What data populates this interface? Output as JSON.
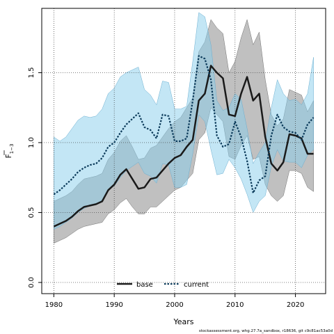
{
  "chart_data": {
    "type": "line",
    "xlabel": "Years",
    "ylabel_main": "F",
    "ylabel_sub": "1−3",
    "xlim": [
      1978,
      2025
    ],
    "ylim": [
      -0.08,
      1.96
    ],
    "xticks": [
      1980,
      1990,
      2000,
      2010,
      2020
    ],
    "yticks": [
      0.0,
      0.5,
      1.0,
      1.5
    ],
    "ytick_labels": [
      "0.0",
      "0.5",
      "1.0",
      "1.5"
    ],
    "grid": true,
    "legend_placement": "bottom-center",
    "colors": {
      "base_line": "#1a1a1a",
      "base_band": "#999999",
      "current_line": "#0b3a5a",
      "current_band": "#87ceeb"
    },
    "x": [
      1980,
      1981,
      1982,
      1983,
      1984,
      1985,
      1986,
      1987,
      1988,
      1989,
      1990,
      1991,
      1992,
      1993,
      1994,
      1995,
      1996,
      1997,
      1998,
      1999,
      2000,
      2001,
      2002,
      2003,
      2004,
      2005,
      2006,
      2007,
      2008,
      2009,
      2010,
      2011,
      2012,
      2013,
      2014,
      2015,
      2016,
      2017,
      2018,
      2019,
      2020,
      2021,
      2022,
      2023
    ],
    "series": [
      {
        "name": "base",
        "style": "solid",
        "values": [
          0.4,
          0.42,
          0.44,
          0.47,
          0.51,
          0.54,
          0.55,
          0.56,
          0.58,
          0.66,
          0.7,
          0.77,
          0.81,
          0.74,
          0.67,
          0.68,
          0.74,
          0.75,
          0.8,
          0.85,
          0.89,
          0.91,
          0.97,
          1.02,
          1.3,
          1.35,
          1.55,
          1.5,
          1.46,
          1.2,
          1.19,
          1.35,
          1.47,
          1.3,
          1.35,
          1.04,
          0.85,
          0.8,
          0.86,
          1.06,
          1.05,
          1.03,
          0.92,
          0.92
        ],
        "lower": [
          0.28,
          0.3,
          0.32,
          0.35,
          0.38,
          0.4,
          0.41,
          0.42,
          0.43,
          0.49,
          0.52,
          0.57,
          0.6,
          0.54,
          0.49,
          0.49,
          0.54,
          0.54,
          0.58,
          0.62,
          0.66,
          0.68,
          0.73,
          0.78,
          1.02,
          1.07,
          1.25,
          1.2,
          1.15,
          0.9,
          0.88,
          0.98,
          1.05,
          0.88,
          0.9,
          0.7,
          0.62,
          0.58,
          0.62,
          0.8,
          0.8,
          0.78,
          0.68,
          0.65
        ],
        "upper": [
          0.58,
          0.6,
          0.62,
          0.65,
          0.7,
          0.74,
          0.75,
          0.76,
          0.78,
          0.88,
          0.93,
          1.01,
          1.05,
          0.97,
          0.88,
          0.89,
          0.96,
          0.98,
          1.04,
          1.1,
          1.15,
          1.18,
          1.25,
          1.32,
          1.65,
          1.72,
          1.88,
          1.82,
          1.78,
          1.5,
          1.58,
          1.75,
          1.88,
          1.7,
          1.79,
          1.45,
          1.2,
          1.12,
          1.17,
          1.38,
          1.36,
          1.34,
          1.22,
          1.3
        ]
      },
      {
        "name": "current",
        "style": "dotted",
        "values": [
          0.63,
          0.66,
          0.7,
          0.74,
          0.79,
          0.82,
          0.84,
          0.85,
          0.89,
          0.97,
          1.0,
          1.07,
          1.13,
          1.17,
          1.21,
          1.11,
          1.09,
          1.03,
          1.2,
          1.19,
          1.01,
          1.01,
          1.03,
          1.3,
          1.62,
          1.6,
          1.45,
          1.05,
          0.97,
          0.99,
          1.15,
          1.04,
          0.87,
          0.64,
          0.73,
          0.76,
          1.05,
          1.2,
          1.11,
          1.08,
          1.07,
          1.02,
          1.13,
          1.18
        ],
        "lower": [
          0.38,
          0.4,
          0.43,
          0.46,
          0.5,
          0.53,
          0.55,
          0.56,
          0.59,
          0.66,
          0.69,
          0.75,
          0.8,
          0.83,
          0.86,
          0.78,
          0.76,
          0.71,
          0.85,
          0.84,
          0.68,
          0.68,
          0.7,
          0.92,
          1.2,
          1.15,
          0.95,
          0.77,
          0.78,
          0.88,
          0.82,
          0.74,
          0.63,
          0.5,
          0.58,
          0.62,
          0.83,
          0.95,
          0.87,
          0.86,
          0.86,
          0.82,
          0.91,
          0.95
        ],
        "upper": [
          1.04,
          1.01,
          1.04,
          1.1,
          1.16,
          1.19,
          1.18,
          1.19,
          1.24,
          1.35,
          1.39,
          1.47,
          1.5,
          1.52,
          1.54,
          1.38,
          1.34,
          1.27,
          1.44,
          1.43,
          1.24,
          1.24,
          1.26,
          1.58,
          1.93,
          1.9,
          1.7,
          1.3,
          1.23,
          1.25,
          1.35,
          1.31,
          1.1,
          0.85,
          0.93,
          1.0,
          1.25,
          1.45,
          1.35,
          1.3,
          1.31,
          1.27,
          1.35,
          1.61
        ]
      }
    ],
    "footer": "stockassessment.org, whg.27.7a_sandbox, r18636, git c9c81ac53a0d"
  }
}
